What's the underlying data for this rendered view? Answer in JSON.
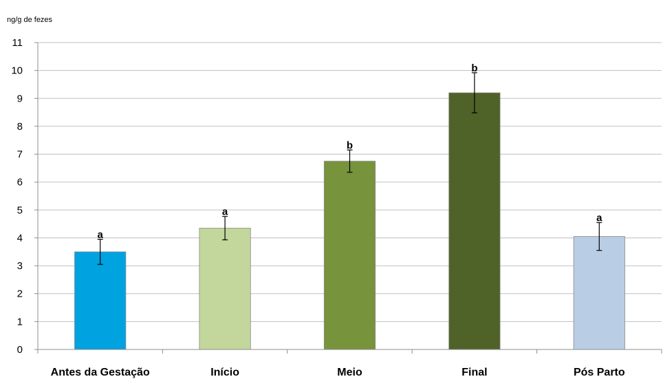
{
  "chart_data": {
    "type": "bar",
    "ylabel": "ng/g de fezes",
    "ylim": [
      0,
      11
    ],
    "yticks": [
      0,
      1,
      2,
      3,
      4,
      5,
      6,
      7,
      8,
      9,
      10,
      11
    ],
    "grid": true,
    "categories": [
      "Antes da Gestação",
      "Início",
      "Meio",
      "Final",
      "Pós Parto"
    ],
    "values": [
      3.5,
      4.35,
      6.75,
      9.2,
      4.05
    ],
    "errors": [
      0.45,
      0.42,
      0.4,
      0.72,
      0.5
    ],
    "significance": [
      "a",
      "a",
      "b",
      "b",
      "a"
    ],
    "colors": [
      "#00a2e0",
      "#c3d69b",
      "#77933c",
      "#4f6228",
      "#b9cde5"
    ]
  }
}
